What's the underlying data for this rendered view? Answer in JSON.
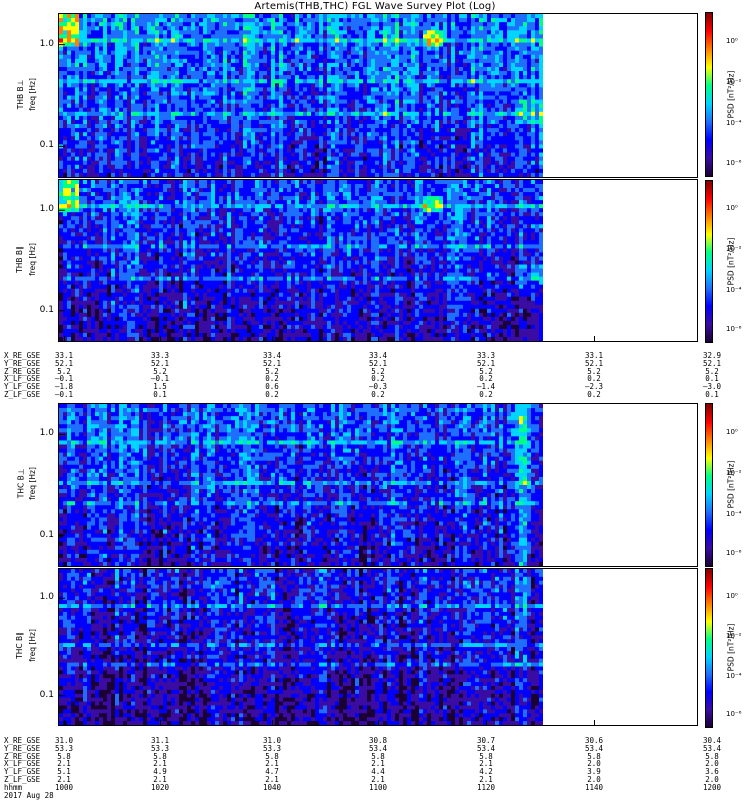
{
  "title": "Artemis(THB,THC) FGL Wave Survey Plot (Log)",
  "panels": [
    {
      "id": "thb-perp",
      "label": "THB B⊥",
      "units": "freq [Hz]",
      "yticks": [
        "1.0",
        "0.1"
      ],
      "cbar_label": "PSD [nT²/Hz]",
      "cbar_ticks": [
        "10⁰",
        "10⁻²",
        "10⁻⁴",
        "10⁻⁶"
      ]
    },
    {
      "id": "thb-par",
      "label": "THB B∥",
      "units": "freq [Hz]",
      "yticks": [
        "1.0",
        "0.1"
      ],
      "cbar_label": "PSD [nT²/Hz]",
      "cbar_ticks": [
        "10⁰",
        "10⁻²",
        "10⁻⁴",
        "10⁻⁶"
      ]
    },
    {
      "id": "thc-perp",
      "label": "THC B⊥",
      "units": "freq [Hz]",
      "yticks": [
        "1.0",
        "0.1"
      ],
      "cbar_label": "PSD [nT²/Hz]",
      "cbar_ticks": [
        "10⁰",
        "10⁻²",
        "10⁻⁴",
        "10⁻⁶"
      ]
    },
    {
      "id": "thc-par",
      "label": "THC B∥",
      "units": "freq [Hz]",
      "yticks": [
        "1.0",
        "0.1"
      ],
      "cbar_label": "PSD [nT²/Hz]",
      "cbar_ticks": [
        "10⁰",
        "10⁻²",
        "10⁻⁴",
        "10⁻⁶"
      ]
    }
  ],
  "eph_thb": {
    "rows": [
      {
        "name": "X_RE_GSE",
        "vals": [
          "33.1",
          "33.3",
          "33.4",
          "33.4",
          "33.3",
          "33.1",
          "32.9"
        ]
      },
      {
        "name": "Y_RE_GSE",
        "vals": [
          "52.1",
          "52.1",
          "52.1",
          "52.1",
          "52.1",
          "52.1",
          "52.1"
        ]
      },
      {
        "name": "Z_RE_GSE",
        "vals": [
          "5.2",
          "5.2",
          "5.2",
          "5.2",
          "5.2",
          "5.2",
          "5.2"
        ]
      },
      {
        "name": "X_LF_GSE",
        "vals": "–0.1|–0.1|0.2|0.2|0.2|0.2|0.1"
      },
      {
        "name": "Y_LF_GSE",
        "vals": [
          "–1.8",
          "1.5",
          "0.6",
          "–0.3",
          "–1.4",
          "–2.3",
          "–3.0"
        ]
      },
      {
        "name": "Z_LF_GSE",
        "vals": [
          "–0.1",
          "0.1",
          "0.2",
          "0.2",
          "0.2",
          "0.2",
          "0.1"
        ]
      }
    ]
  },
  "eph_thc": {
    "rows": [
      {
        "name": "X_RE_GSE",
        "vals": [
          "31.0",
          "31.1",
          "31.0",
          "30.8",
          "30.7",
          "30.6",
          "30.4"
        ]
      },
      {
        "name": "Y_RE_GSE",
        "vals": [
          "53.3",
          "53.3",
          "53.3",
          "53.4",
          "53.4",
          "53.4",
          "53.4"
        ]
      },
      {
        "name": "Z_RE_GSE",
        "vals": [
          "5.8",
          "5.8",
          "5.8",
          "5.8",
          "5.8",
          "5.8",
          "5.8"
        ]
      },
      {
        "name": "X_LF_GSE",
        "vals": [
          "2.1",
          "2.1",
          "2.1",
          "2.1",
          "2.1",
          "2.0",
          "2.0"
        ]
      },
      {
        "name": "Y_LF_GSE",
        "vals": [
          "5.1",
          "4.9",
          "4.7",
          "4.4",
          "4.2",
          "3.9",
          "3.6"
        ]
      },
      {
        "name": "Z_LF_GSE",
        "vals": [
          "2.1",
          "2.1",
          "2.1",
          "2.1",
          "2.1",
          "2.0",
          "2.0"
        ]
      }
    ],
    "time_label": "hhmm",
    "time_vals": [
      "1000",
      "1020",
      "1040",
      "1100",
      "1120",
      "1140",
      "1200"
    ],
    "date": "2017 Aug 28"
  },
  "chart_data": {
    "type": "heatmap",
    "title": "Artemis(THB,THC) FGL Wave Survey Plot (Log)",
    "x": {
      "label": "hhmm",
      "ticks": [
        "1000",
        "1020",
        "1040",
        "1100",
        "1120",
        "1140",
        "1200"
      ],
      "data_end": "1131"
    },
    "y": {
      "label": "freq [Hz]",
      "scale": "log",
      "range": [
        0.05,
        2.0
      ],
      "ticks": [
        1.0,
        0.1
      ]
    },
    "z": {
      "label": "PSD [nT²/Hz]",
      "scale": "log",
      "range": [
        -7,
        1
      ],
      "ticks": [
        0,
        -2,
        -4,
        -6
      ]
    },
    "colormap": [
      "#1a0033",
      "#3a0ca3",
      "#0000ff",
      "#1f6fff",
      "#00d5ff",
      "#00ff88",
      "#ffff00",
      "#ff8000",
      "#ff0000",
      "#7f0000"
    ],
    "panels": [
      "THB B⊥",
      "THB B∥",
      "THC B⊥",
      "THC B∥"
    ]
  }
}
